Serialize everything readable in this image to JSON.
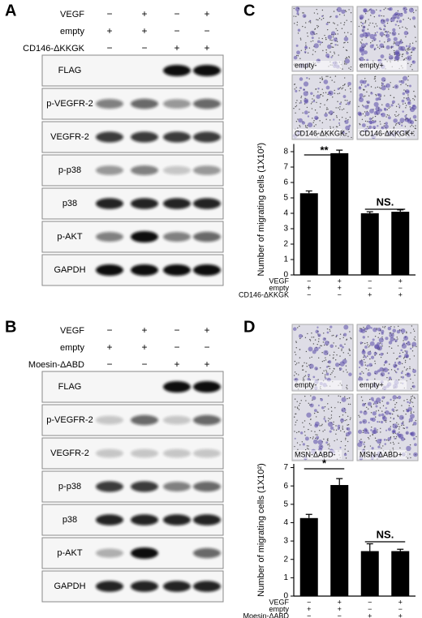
{
  "panels": [
    {
      "label": "A",
      "treatments": [
        {
          "name": "VEGF",
          "signs": [
            "−",
            "+",
            "−",
            "+"
          ]
        },
        {
          "name": "empty",
          "signs": [
            "+",
            "+",
            "−",
            "−"
          ]
        },
        {
          "name": "CD146-ΔKKGK",
          "signs": [
            "−",
            "−",
            "+",
            "+"
          ]
        }
      ],
      "blots": [
        "FLAG",
        "p-VEGFR-2",
        "VEGFR-2",
        "p-p38",
        "p38",
        "p-AKT",
        "GAPDH"
      ]
    },
    {
      "label": "B",
      "treatments": [
        {
          "name": "VEGF",
          "signs": [
            "−",
            "+",
            "−",
            "+"
          ]
        },
        {
          "name": "empty",
          "signs": [
            "+",
            "+",
            "−",
            "−"
          ]
        },
        {
          "name": "Moesin-ΔABD",
          "signs": [
            "−",
            "−",
            "+",
            "+"
          ]
        }
      ],
      "blots": [
        "FLAG",
        "p-VEGFR-2",
        "VEGFR-2",
        "p-p38",
        "p38",
        "p-AKT",
        "GAPDH"
      ]
    }
  ],
  "chart_data": [
    {
      "type": "bar",
      "panel": "C",
      "images": [
        "empty-",
        "empty+",
        "CD146-ΔKKGK-",
        "CD146-ΔKKGK+"
      ],
      "y_label": "Number of migrating cells (1X10²)",
      "values": [
        5.3,
        7.9,
        4.0,
        4.1
      ],
      "errors": [
        0.15,
        0.2,
        0.1,
        0.12
      ],
      "color": "#000000",
      "ylim": [
        0,
        8.5
      ],
      "yticks": [
        0,
        1,
        2,
        3,
        4,
        5,
        6,
        7,
        8
      ],
      "annotations": [
        "**",
        "NS."
      ],
      "treatments": [
        {
          "name": "VEGF",
          "signs": [
            "−",
            "+",
            "−",
            "+"
          ]
        },
        {
          "name": "empty",
          "signs": [
            "+",
            "+",
            "−",
            "−"
          ]
        },
        {
          "name": "CD146-ΔKKGK",
          "signs": [
            "−",
            "−",
            "+",
            "+"
          ]
        }
      ]
    },
    {
      "type": "bar",
      "panel": "D",
      "images": [
        "empty-",
        "empty+",
        "MSN-ΔABD-",
        "MSN-ΔABD+"
      ],
      "y_label": "Number of migrating cells (1X10²)",
      "values": [
        4.25,
        6.05,
        2.45,
        2.45
      ],
      "errors": [
        0.2,
        0.35,
        0.4,
        0.1
      ],
      "color": "#000000",
      "ylim": [
        0,
        7.2
      ],
      "yticks": [
        0,
        1,
        2,
        3,
        4,
        5,
        6,
        7
      ],
      "annotations": [
        "*",
        "NS."
      ],
      "treatments": [
        {
          "name": "VEGF",
          "signs": [
            "−",
            "+",
            "−",
            "+"
          ]
        },
        {
          "name": "empty",
          "signs": [
            "+",
            "+",
            "−",
            "−"
          ]
        },
        {
          "name": "Moesin-ΔABD",
          "signs": [
            "−",
            "−",
            "+",
            "+"
          ]
        }
      ]
    }
  ]
}
